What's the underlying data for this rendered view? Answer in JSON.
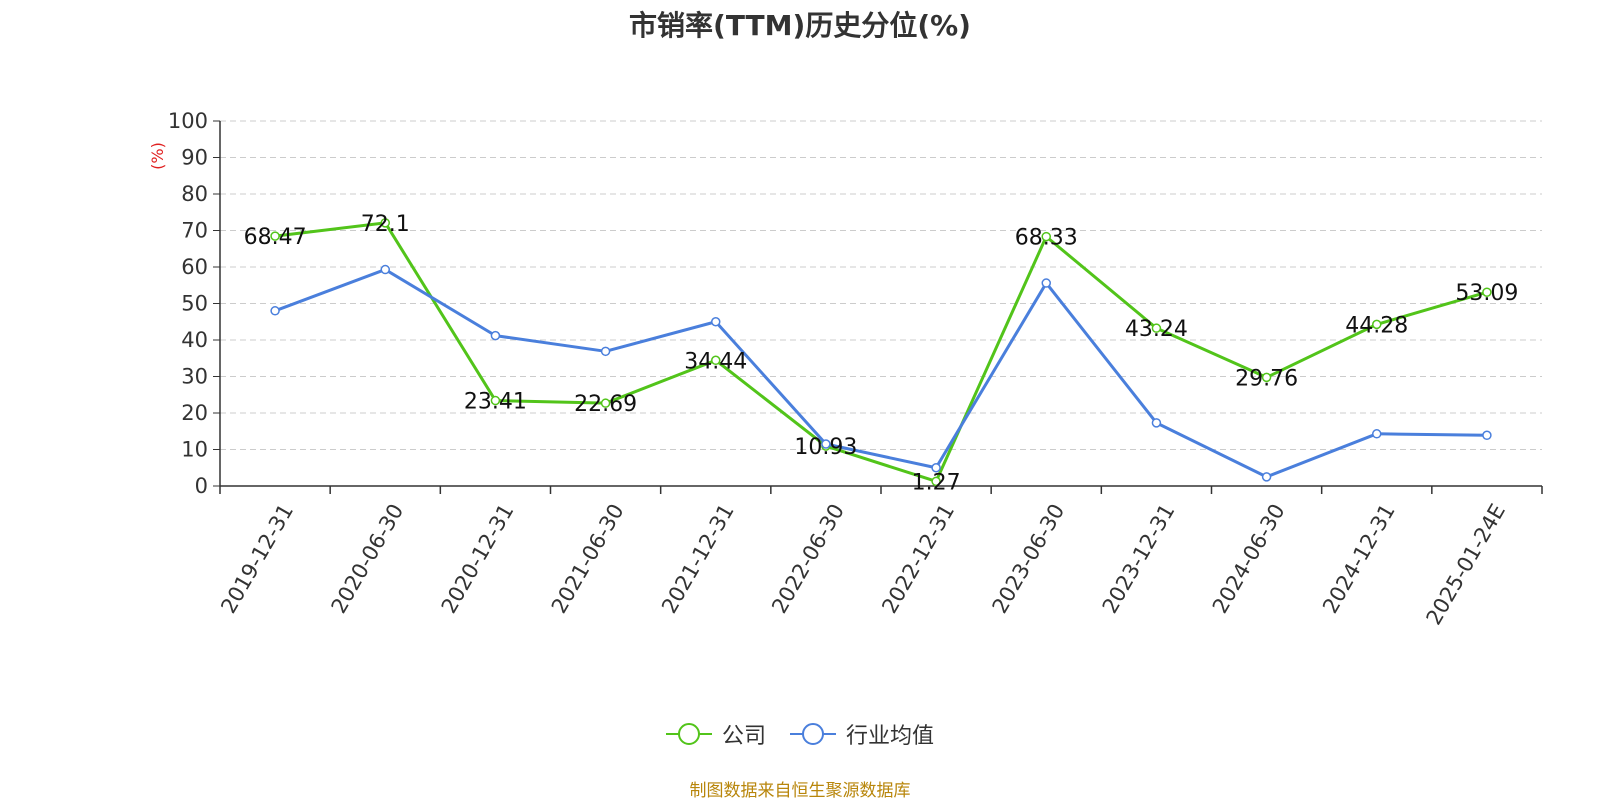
{
  "chart_data": {
    "type": "line",
    "title": "市销率(TTM)历史分位(%)",
    "ylabel": "(%)",
    "ylim": [
      0,
      100
    ],
    "yticks": [
      0,
      10,
      20,
      30,
      40,
      50,
      60,
      70,
      80,
      90,
      100
    ],
    "grid": true,
    "legend_position": "bottom",
    "categories": [
      "2019-12-31",
      "2020-06-30",
      "2020-12-31",
      "2021-06-30",
      "2021-12-31",
      "2022-06-30",
      "2022-12-31",
      "2023-06-30",
      "2023-12-31",
      "2024-06-30",
      "2024-12-31",
      "2025-01-24E"
    ],
    "series": [
      {
        "name": "公司",
        "color": "#52c41a",
        "values": [
          68.47,
          72.1,
          23.41,
          22.69,
          34.44,
          10.93,
          1.27,
          68.33,
          43.24,
          29.76,
          44.28,
          53.09
        ],
        "data_labels": [
          "68.47",
          "72.1",
          "23.41",
          "22.69",
          "34.44",
          "10.93",
          "1.27",
          "68.33",
          "43.24",
          "29.76",
          "44.28",
          "53.09"
        ]
      },
      {
        "name": "行业均值",
        "color": "#4a7fdc",
        "values": [
          48,
          59.3,
          41.2,
          36.9,
          45,
          11.5,
          5,
          55.6,
          17.3,
          2.5,
          14.3,
          13.9
        ]
      }
    ]
  },
  "source_note": "制图数据来自恒生聚源数据库"
}
